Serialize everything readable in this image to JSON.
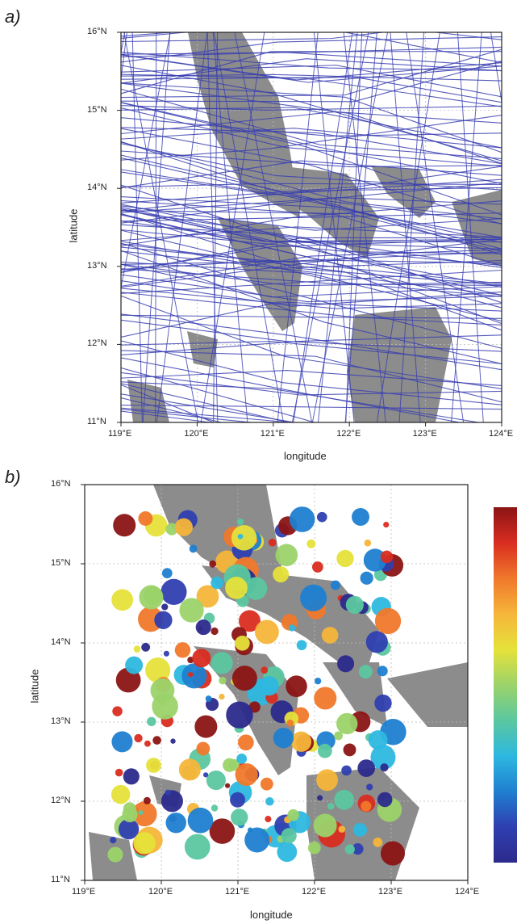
{
  "panel_a": {
    "label": "a)",
    "ylabel": "latitude",
    "xlabel": "longitude",
    "lat_ticks": [
      "11°N",
      "12°N",
      "13°N",
      "14°N",
      "15°N",
      "16°N"
    ],
    "lon_ticks": [
      "119°E",
      "120°E",
      "121°E",
      "122°E",
      "123°E",
      "124°E"
    ],
    "track_color": "#3a3fb0",
    "land_color": "#8c8c8c"
  },
  "panel_b": {
    "label": "b)",
    "ylabel": "latitude",
    "xlabel": "longitude",
    "lat_ticks": [
      "11°N",
      "12°N",
      "13°N",
      "14°N",
      "15°N",
      "16°N"
    ],
    "lon_ticks": [
      "119°E",
      "120°E",
      "121°E",
      "122°E",
      "123°E",
      "124°E"
    ],
    "land_color": "#8c8c8c",
    "colorbar": [
      "#2c2a8c",
      "#2f3fb0",
      "#1f7fd0",
      "#2db8e0",
      "#5bc7a0",
      "#9bd36a",
      "#e6e23a",
      "#f6b53a",
      "#f0782b",
      "#d92d20",
      "#8b1414"
    ]
  }
}
